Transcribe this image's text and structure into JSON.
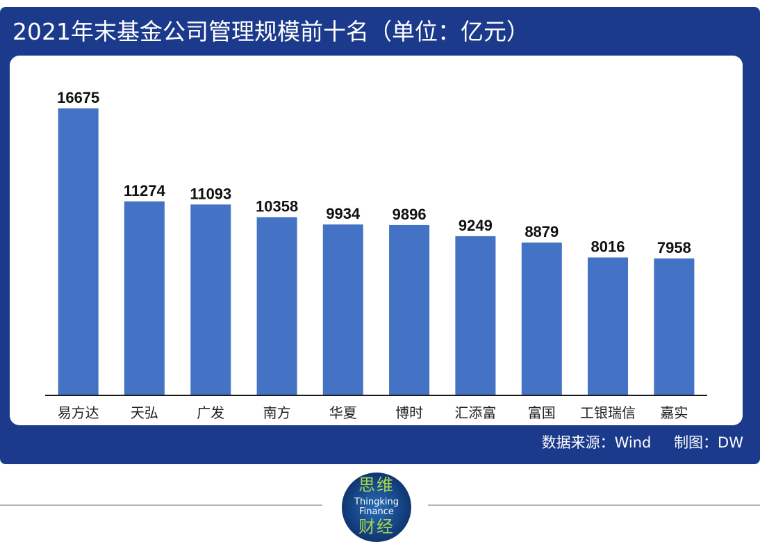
{
  "header": {
    "title": "2021年末基金公司管理规模前十名（单位：亿元）"
  },
  "footer": {
    "source_label": "数据来源：Wind",
    "author_label": "制图：DW"
  },
  "logo": {
    "line1": "思维",
    "line2": "Thingking",
    "line3": "Finance",
    "line4": "财经"
  },
  "colors": {
    "bar": "#4472c4",
    "panel": "#1b3a8c",
    "axis": "#1a1a1a"
  },
  "chart_data": {
    "type": "bar",
    "title": "2021年末基金公司管理规模前十名（单位：亿元）",
    "xlabel": "",
    "ylabel": "",
    "ylim": [
      0,
      16675
    ],
    "grid": false,
    "categories": [
      "易方达",
      "天弘",
      "广发",
      "南方",
      "华夏",
      "博时",
      "汇添富",
      "富国",
      "工银瑞信",
      "嘉实"
    ],
    "values": [
      16675,
      11274,
      11093,
      10358,
      9934,
      9896,
      9249,
      8879,
      8016,
      7958
    ]
  }
}
